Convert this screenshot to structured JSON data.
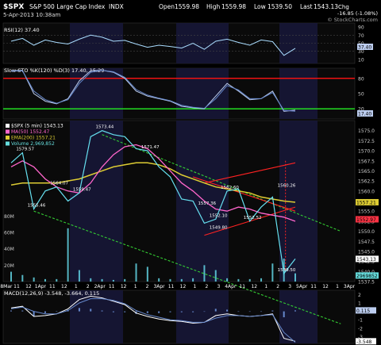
{
  "header": {
    "symbol": "$SPX",
    "name": "S&P 500 Large Cap Index",
    "exchange": "INDX",
    "date": "5-Apr-2013 10:38am",
    "open_label": "Open",
    "open": "1559.98",
    "high_label": "High",
    "high": "1559.98",
    "low_label": "Low",
    "low": "1539.50",
    "last_label": "Last",
    "last": "1543.13",
    "chg_label": "Chg",
    "chg": "-16.85 (-1.08%)",
    "watermark": "© StockCharts.com"
  },
  "rsi_panel": {
    "label": "RSI(12) 37.40",
    "tick_labels": [
      "90",
      "70",
      "50",
      "30",
      "10"
    ],
    "last_value": "37.40"
  },
  "sto_panel": {
    "label": "Slow STO %K(120) %D(3) 17.40, 15.29",
    "tick_labels": [
      "80",
      "50",
      "20"
    ],
    "last_value": "17.40"
  },
  "price_panel": {
    "legend": [
      {
        "text": "$SPX (5 min) 1543.13",
        "color": "#ffffff"
      },
      {
        "text": "MA(50) 1552.47",
        "color": "#ff66cc"
      },
      {
        "text": "EMA(200) 1557.21",
        "color": "#ddcc33"
      },
      {
        "text": "Volume 2,969,852",
        "color": "#66dddd"
      }
    ],
    "price_tick_labels": [
      "1575.0",
      "1572.5",
      "1570.0",
      "1567.5",
      "1565.0",
      "1562.5",
      "1560.0",
      "1557.5",
      "1555.0",
      "1552.5",
      "1550.0",
      "1547.5",
      "1545.0",
      "1542.5",
      "1540.0",
      "1537.5"
    ],
    "volume_tick_labels": [
      "80M",
      "60M",
      "40M",
      "20M"
    ],
    "flags": [
      {
        "text": "1557.21",
        "color": "#ddcc33"
      },
      {
        "text": "1552.97",
        "color": "#ff3344"
      },
      {
        "text": "1543.13",
        "color": "#ffffff"
      },
      {
        "text": "2969852",
        "color": "#66dddd"
      }
    ],
    "annotations": [
      "1579.57",
      "1573.44",
      "1571.47",
      "1564.07",
      "1559.47",
      "1555.46",
      "1562.60",
      "1560.26",
      "1557.36",
      "1552.10",
      "1549.80",
      "1552.52",
      "1539.50"
    ]
  },
  "macd_panel": {
    "label": "MACD(12,26,9) -3.548, -3.664, 0.115",
    "tick_labels": [
      "2",
      "1",
      "0",
      "-1",
      "-2",
      "-3"
    ],
    "flags": [
      "0.115",
      "-3.548"
    ]
  },
  "x_axis": {
    "labels": [
      "28Mar",
      "11",
      "12",
      "1Apr",
      "11",
      "12",
      "1",
      "2",
      "2Apr",
      "11",
      "12",
      "1",
      "2",
      "3Apr",
      "11",
      "12",
      "1",
      "2",
      "3",
      "4Apr",
      "11",
      "12",
      "1",
      "2",
      "3",
      "5Apr",
      "11",
      "12",
      "1",
      "3Apr"
    ]
  },
  "colors": {
    "panel_bg": "#0a0a0a",
    "session_shade": "#18183a",
    "price_line": "#66e0f0",
    "ma50": "#ff66cc",
    "ema200": "#ddcc33",
    "green_level": "#22dd22",
    "red_level": "#ee1111",
    "trend_green": "#33cc33",
    "trend_red": "#ff2222",
    "axis_text": "#cccccc"
  },
  "chart_data": {
    "type": "line",
    "title": "$SPX S&P 500 Large Cap Index INDX",
    "xlabel": "",
    "ylabel": "",
    "ylim": [
      1537.5,
      1577.5
    ],
    "x": [
      "28Mar 11",
      "28Mar 12",
      "1Apr open",
      "1Apr 11",
      "1Apr 12",
      "1Apr 1",
      "1Apr 2",
      "2Apr open",
      "2Apr 11",
      "2Apr 12",
      "2Apr 1",
      "2Apr 2",
      "3Apr open",
      "3Apr 11",
      "3Apr 12",
      "3Apr 1",
      "3Apr 2",
      "3Apr 3",
      "4Apr open",
      "4Apr 11",
      "4Apr 12",
      "4Apr 1",
      "4Apr 2",
      "4Apr 3",
      "5Apr open",
      "5Apr 11"
    ],
    "series": [
      {
        "name": "$SPX (5 min)",
        "values": [
          1567,
          1569.5,
          1555.5,
          1560,
          1561,
          1557.5,
          1559.5,
          1573.5,
          1575,
          1574,
          1573.5,
          1570.5,
          1570,
          1566,
          1563.5,
          1558,
          1557.5,
          1552,
          1553,
          1560,
          1560.5,
          1552.5,
          1556,
          1558.5,
          1539.5,
          1543.13
        ]
      },
      {
        "name": "MA(50)",
        "values": [
          1566,
          1567.5,
          1566,
          1563,
          1561,
          1560,
          1559.5,
          1562,
          1566,
          1569,
          1571,
          1571.5,
          1570.5,
          1568,
          1565,
          1562,
          1560,
          1557.5,
          1555.5,
          1555,
          1556,
          1555.5,
          1554.5,
          1554,
          1553.5,
          1552.47
        ]
      },
      {
        "name": "EMA(200)",
        "values": [
          1561.5,
          1562,
          1562,
          1562,
          1562,
          1562.5,
          1563,
          1564,
          1565,
          1566,
          1566.5,
          1567,
          1567,
          1566.5,
          1565.5,
          1564,
          1563,
          1562,
          1561,
          1560.5,
          1560,
          1559.5,
          1558.5,
          1558,
          1557.5,
          1557.21
        ]
      }
    ],
    "volume_ylim": [
      0,
      90
    ],
    "volume_units": "M",
    "volume_values": [
      12,
      8,
      5,
      3,
      3,
      65,
      14,
      4,
      3,
      2,
      3,
      22,
      18,
      4,
      3,
      3,
      4,
      20,
      14,
      4,
      3,
      3,
      4,
      22,
      28,
      10
    ],
    "rsi": {
      "ylim": [
        0,
        100
      ],
      "values": [
        55,
        62,
        45,
        58,
        52,
        48,
        60,
        70,
        65,
        55,
        57,
        48,
        40,
        45,
        42,
        38,
        50,
        35,
        55,
        60,
        52,
        45,
        58,
        54,
        20,
        37.4
      ],
      "last": 37.4
    },
    "slow_sto": {
      "ylim": [
        0,
        100
      ],
      "levels": [
        80,
        20
      ],
      "k_values": [
        95,
        96,
        50,
        35,
        30,
        40,
        75,
        95,
        96,
        92,
        80,
        55,
        45,
        40,
        35,
        25,
        22,
        20,
        45,
        70,
        55,
        38,
        40,
        55,
        15,
        17.4
      ],
      "d_values": [
        94,
        95,
        55,
        38,
        31,
        38,
        70,
        92,
        96,
        93,
        82,
        58,
        47,
        41,
        36,
        27,
        23,
        21,
        40,
        66,
        57,
        40,
        40,
        52,
        17,
        15.29
      ]
    },
    "macd": {
      "ylim": [
        -3.8,
        2.5
      ],
      "macd_values": [
        0.4,
        0.6,
        -0.6,
        -0.5,
        -0.3,
        0.3,
        1.4,
        1.8,
        1.6,
        1.2,
        0.8,
        -0.2,
        -0.6,
        -0.9,
        -1.1,
        -1.2,
        -1.4,
        -1.3,
        -0.5,
        -0.3,
        -0.5,
        -0.6,
        -0.5,
        -0.3,
        -3.2,
        -3.548
      ],
      "signal_values": [
        0.3,
        0.5,
        0.0,
        -0.3,
        -0.3,
        0.1,
        1.0,
        1.5,
        1.5,
        1.3,
        0.9,
        0.1,
        -0.4,
        -0.7,
        -1.0,
        -1.1,
        -1.3,
        -1.3,
        -0.8,
        -0.5,
        -0.5,
        -0.6,
        -0.5,
        -0.4,
        -2.5,
        -3.664
      ],
      "hist_last": 0.115
    }
  }
}
